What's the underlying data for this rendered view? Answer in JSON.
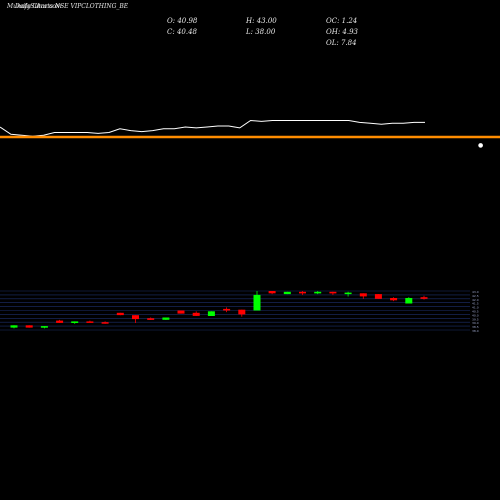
{
  "header": {
    "title_part1": "MunafaSutra.com",
    "title_part2": "Daily Charts NSE",
    "symbol": "VIPCLOTHING_BE"
  },
  "stats": {
    "open": "O: 40.98",
    "close": "C: 40.48",
    "high": "H: 43.00",
    "low": "L: 38.00",
    "oc": "OC: 1.24",
    "oh": "OH: 4.93",
    "ol": "OL: 7.84"
  },
  "colors": {
    "background": "#000000",
    "up_candle": "#00ff00",
    "down_candle": "#ff0000",
    "price_line": "#ffffff",
    "ema_line": "#ff8c00",
    "grid_line": "#1c2f6b",
    "text": "#e8e8e8"
  },
  "chart_data": {
    "type": "candlestick",
    "price_range_estimate": [
      38.0,
      43.0
    ],
    "line_series": [
      {
        "name": "",
        "values": [
          38.2,
          37.4,
          37.3,
          37.2,
          37.3,
          37.6,
          37.6,
          37.6,
          37.6,
          37.5,
          37.6,
          38.0,
          37.8,
          37.7,
          37.8,
          38.0,
          38.0,
          38.2,
          38.1,
          38.2,
          38.3,
          38.3,
          38.1,
          38.9,
          38.8,
          38.9,
          38.9,
          38.9,
          38.9,
          38.9,
          38.9,
          38.9,
          38.9,
          38.7,
          38.6,
          38.5,
          38.6,
          38.6,
          38.7,
          38.7
        ]
      }
    ],
    "ema_line": {
      "value": 36.8
    },
    "candles": [
      {
        "o": 38.3,
        "h": 38.6,
        "l": 38.2,
        "c": 38.6
      },
      {
        "o": 38.6,
        "h": 38.6,
        "l": 38.3,
        "c": 38.3
      },
      {
        "o": 38.3,
        "h": 38.5,
        "l": 38.2,
        "c": 38.5
      },
      {
        "o": 39.2,
        "h": 39.3,
        "l": 38.9,
        "c": 38.9
      },
      {
        "o": 38.9,
        "h": 39.1,
        "l": 38.8,
        "c": 39.1
      },
      {
        "o": 39.1,
        "h": 39.2,
        "l": 39.0,
        "c": 39.0
      },
      {
        "o": 39.0,
        "h": 39.1,
        "l": 38.8,
        "c": 38.9
      },
      {
        "o": 40.2,
        "h": 40.2,
        "l": 39.9,
        "c": 39.9
      },
      {
        "o": 39.9,
        "h": 39.9,
        "l": 38.9,
        "c": 39.4
      },
      {
        "o": 39.5,
        "h": 39.6,
        "l": 39.3,
        "c": 39.3
      },
      {
        "o": 39.3,
        "h": 39.6,
        "l": 39.3,
        "c": 39.6
      },
      {
        "o": 40.5,
        "h": 40.5,
        "l": 40.1,
        "c": 40.1
      },
      {
        "o": 40.2,
        "h": 40.4,
        "l": 39.8,
        "c": 39.8
      },
      {
        "o": 39.8,
        "h": 40.4,
        "l": 39.8,
        "c": 40.4
      },
      {
        "o": 40.7,
        "h": 40.9,
        "l": 40.3,
        "c": 40.5
      },
      {
        "o": 40.6,
        "h": 40.6,
        "l": 39.7,
        "c": 40.0
      },
      {
        "o": 40.5,
        "h": 43.0,
        "l": 40.5,
        "c": 42.5
      },
      {
        "o": 43.0,
        "h": 43.0,
        "l": 42.6,
        "c": 42.7
      },
      {
        "o": 42.6,
        "h": 42.9,
        "l": 42.6,
        "c": 42.9
      },
      {
        "o": 42.9,
        "h": 43.0,
        "l": 42.5,
        "c": 42.7
      },
      {
        "o": 42.7,
        "h": 43.0,
        "l": 42.6,
        "c": 42.9
      },
      {
        "o": 42.9,
        "h": 42.9,
        "l": 42.5,
        "c": 42.7
      },
      {
        "o": 42.7,
        "h": 42.9,
        "l": 42.3,
        "c": 42.8
      },
      {
        "o": 42.7,
        "h": 42.7,
        "l": 42.0,
        "c": 42.3
      },
      {
        "o": 42.6,
        "h": 42.6,
        "l": 42.0,
        "c": 42.0
      },
      {
        "o": 42.1,
        "h": 42.2,
        "l": 41.7,
        "c": 41.8
      },
      {
        "o": 41.4,
        "h": 42.2,
        "l": 41.4,
        "c": 42.1
      },
      {
        "o": 42.2,
        "h": 42.4,
        "l": 41.9,
        "c": 42.0
      }
    ]
  }
}
